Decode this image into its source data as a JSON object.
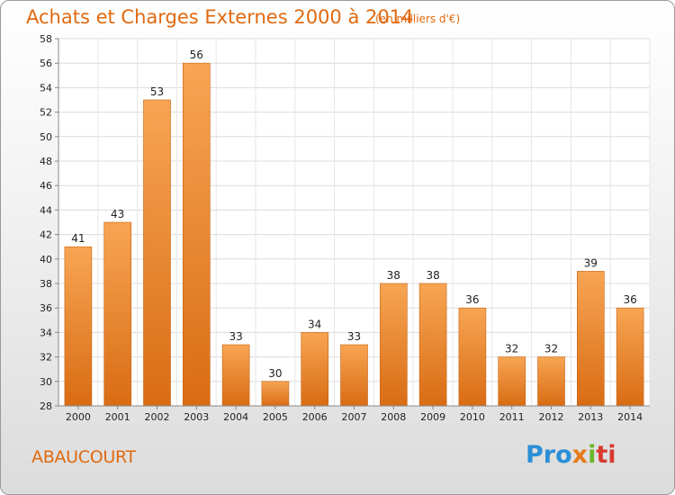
{
  "chart_data": {
    "type": "bar",
    "title": "Achats et Charges Externes 2000 à 2014",
    "unit_label": "(en milliers d'€)",
    "categories": [
      "2000",
      "2001",
      "2002",
      "2003",
      "2004",
      "2005",
      "2006",
      "2007",
      "2008",
      "2009",
      "2010",
      "2011",
      "2012",
      "2013",
      "2014"
    ],
    "values": [
      41,
      43,
      53,
      56,
      33,
      30,
      34,
      33,
      38,
      38,
      36,
      32,
      32,
      39,
      36
    ],
    "ylim": [
      28,
      58
    ],
    "yticks": [
      28,
      30,
      32,
      34,
      36,
      38,
      40,
      42,
      44,
      46,
      48,
      50,
      52,
      54,
      56,
      58
    ],
    "grid": true,
    "bar_color": "#f0882a",
    "xlabel": "",
    "ylabel": ""
  },
  "footer": {
    "town": "ABAUCOURT",
    "logo": {
      "p1": "Pro",
      "p2": "x",
      "p3": "i",
      "p4": "ti"
    }
  }
}
